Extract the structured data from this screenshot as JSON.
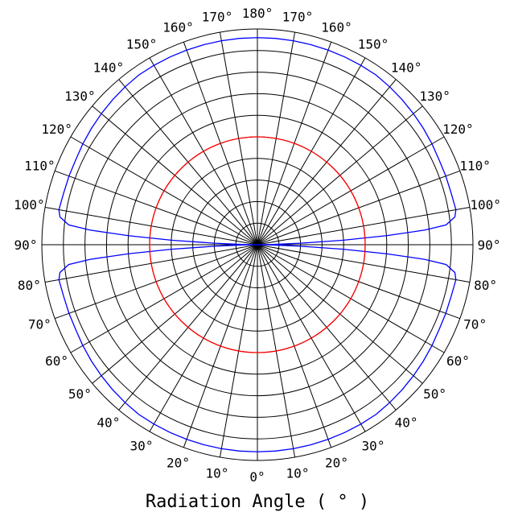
{
  "chart_data": {
    "type": "polar",
    "xlabel": "Radiation Angle ( ° )",
    "angle_tick_labels": {
      "left": [
        "0°",
        "10°",
        "20°",
        "30°",
        "40°",
        "50°",
        "60°",
        "70°",
        "80°",
        "90°",
        "100°",
        "110°",
        "120°",
        "130°",
        "140°",
        "150°",
        "160°",
        "170°",
        "180°"
      ],
      "right": [
        "10°",
        "20°",
        "30°",
        "40°",
        "50°",
        "60°",
        "70°",
        "80°",
        "90°",
        "100°",
        "110°",
        "120°",
        "130°",
        "140°",
        "150°",
        "160°",
        "170°"
      ]
    },
    "angle_range": [
      0,
      180
    ],
    "angle_step": 10,
    "radial_range": [
      0,
      1
    ],
    "radial_rings": 10,
    "grid": true,
    "series": [
      {
        "color": "#0000ff",
        "angles": [
          0,
          5,
          10,
          15,
          20,
          25,
          30,
          35,
          40,
          45,
          50,
          55,
          60,
          65,
          70,
          75,
          80,
          82,
          84,
          85,
          86,
          87,
          88,
          89,
          90,
          91,
          92,
          93,
          94,
          95,
          96,
          98,
          100,
          105,
          110,
          115,
          120,
          125,
          130,
          135,
          140,
          145,
          150,
          155,
          160,
          165,
          170,
          175,
          180
        ],
        "values": [
          0.96,
          0.96,
          0.96,
          0.96,
          0.96,
          0.96,
          0.96,
          0.96,
          0.955,
          0.95,
          0.945,
          0.94,
          0.935,
          0.93,
          0.93,
          0.93,
          0.935,
          0.925,
          0.88,
          0.78,
          0.6,
          0.4,
          0.2,
          0.07,
          0.0,
          0.07,
          0.2,
          0.4,
          0.6,
          0.78,
          0.88,
          0.925,
          0.935,
          0.93,
          0.93,
          0.93,
          0.935,
          0.94,
          0.945,
          0.95,
          0.955,
          0.96,
          0.96,
          0.96,
          0.96,
          0.96,
          0.96,
          0.96,
          0.96
        ]
      },
      {
        "color": "#ff0000",
        "angles": [
          0,
          180
        ],
        "values": [
          0.5,
          0.5
        ]
      }
    ]
  }
}
